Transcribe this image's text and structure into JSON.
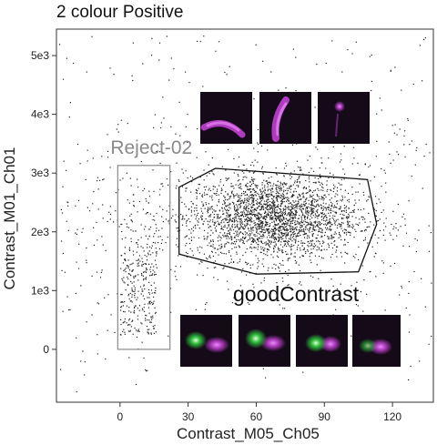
{
  "chart_data": {
    "type": "scatter",
    "title": "2 colour Positive",
    "xlabel": "Contrast_M05_Ch05",
    "ylabel": "Contrast_M01_Ch01",
    "xlim": [
      -28,
      138
    ],
    "ylim": [
      -900,
      5450
    ],
    "x_ticks": [
      {
        "value": 0,
        "label": "0"
      },
      {
        "value": 30,
        "label": "30"
      },
      {
        "value": 60,
        "label": "60"
      },
      {
        "value": 90,
        "label": "90"
      },
      {
        "value": 120,
        "label": "120"
      }
    ],
    "y_ticks": [
      {
        "value": 0,
        "label": "0"
      },
      {
        "value": 1000,
        "label": "1e3"
      },
      {
        "value": 2000,
        "label": "2e3"
      },
      {
        "value": 3000,
        "label": "3e3"
      },
      {
        "value": 4000,
        "label": "4e3"
      },
      {
        "value": 5000,
        "label": "5e3"
      }
    ],
    "gates": [
      {
        "name": "Reject-02",
        "shape": "rectangle",
        "x_range": [
          -1,
          22
        ],
        "y_range": [
          0,
          3130
        ]
      },
      {
        "name": "goodContrast",
        "shape": "polygon",
        "vertices": [
          [
            26,
            2760
          ],
          [
            42,
            3080
          ],
          [
            109,
            2890
          ],
          [
            113,
            2130
          ],
          [
            105,
            1320
          ],
          [
            60,
            1280
          ],
          [
            26,
            1620
          ]
        ]
      }
    ],
    "point_clouds": [
      {
        "region": "Reject-02",
        "count": 320,
        "x_center": 8,
        "x_spread": 5,
        "y_center": 1350,
        "y_spread": 850
      },
      {
        "region": "goodContrast",
        "count": 2600,
        "x_center": 67,
        "x_spread": 19,
        "y_center": 2250,
        "y_spread": 360
      },
      {
        "region": "outside",
        "count": 650,
        "x_center": 80,
        "x_spread": 40,
        "y_center": 2300,
        "y_spread": 1300
      }
    ],
    "grid": false,
    "legend": "none",
    "colors": {
      "points": "#222222",
      "reject_gate": "#8a8a8a",
      "good_gate": "#111111",
      "magenta_channel": "#c040d0",
      "green_channel": "#30d040",
      "thumbnail_bg": "#140a18"
    },
    "thumbnail_rows": [
      {
        "near_gate": "goodContrast-above",
        "count": 3,
        "channels": [
          "magenta"
        ]
      },
      {
        "near_gate": "goodContrast-below",
        "count": 4,
        "channels": [
          "green",
          "magenta"
        ]
      }
    ]
  }
}
